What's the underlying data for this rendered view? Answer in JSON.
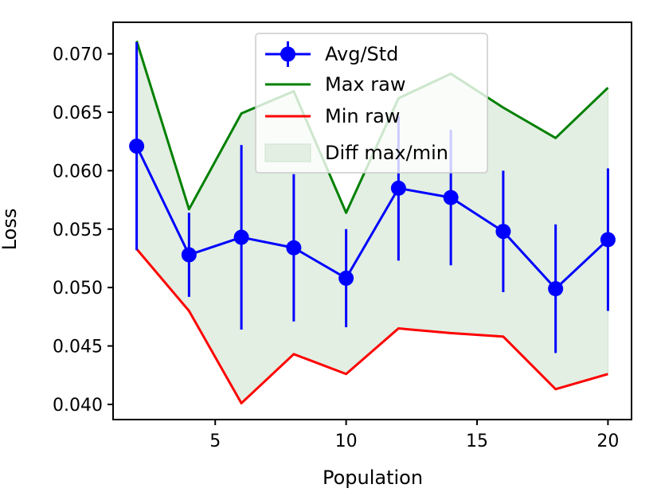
{
  "chart_data": {
    "type": "line",
    "title": "",
    "xlabel": "Population",
    "ylabel": "Loss",
    "xlim": [
      1.1,
      20.9
    ],
    "ylim": [
      0.0387,
      0.0727
    ],
    "xticks": [
      5,
      10,
      15,
      20
    ],
    "xtick_labels": [
      "5",
      "10",
      "15",
      "20"
    ],
    "yticks": [
      0.04,
      0.045,
      0.05,
      0.055,
      0.06,
      0.065,
      0.07
    ],
    "ytick_labels": [
      "0.040",
      "0.045",
      "0.050",
      "0.055",
      "0.060",
      "0.065",
      "0.070"
    ],
    "grid": false,
    "legend_position": "upper-center",
    "x": [
      2,
      4,
      6,
      8,
      10,
      12,
      14,
      16,
      18,
      20
    ],
    "series": [
      {
        "name": "Avg/Std",
        "kind": "errorbar",
        "color": "#0000ff",
        "values": [
          0.0621,
          0.0528,
          0.0543,
          0.0534,
          0.0508,
          0.0585,
          0.0577,
          0.0548,
          0.0499,
          0.0541
        ],
        "std": [
          0.0089,
          0.0036,
          0.0079,
          0.0063,
          0.0042,
          0.0062,
          0.0058,
          0.0052,
          0.0055,
          0.0061
        ]
      },
      {
        "name": "Max raw",
        "kind": "line",
        "color": "#008000",
        "values": [
          0.0711,
          0.0567,
          0.0649,
          0.0668,
          0.0564,
          0.0662,
          0.0683,
          0.0654,
          0.0628,
          0.0671
        ]
      },
      {
        "name": "Min raw",
        "kind": "line",
        "color": "#ff0000",
        "values": [
          0.0533,
          0.048,
          0.0401,
          0.0443,
          0.0426,
          0.0465,
          0.0461,
          0.0458,
          0.0413,
          0.0426
        ]
      },
      {
        "name": "Diff max/min",
        "kind": "fill_between",
        "color": "#e2efe2",
        "edge_color": "#cfe3cf",
        "between": [
          "Max raw",
          "Min raw"
        ]
      }
    ]
  }
}
